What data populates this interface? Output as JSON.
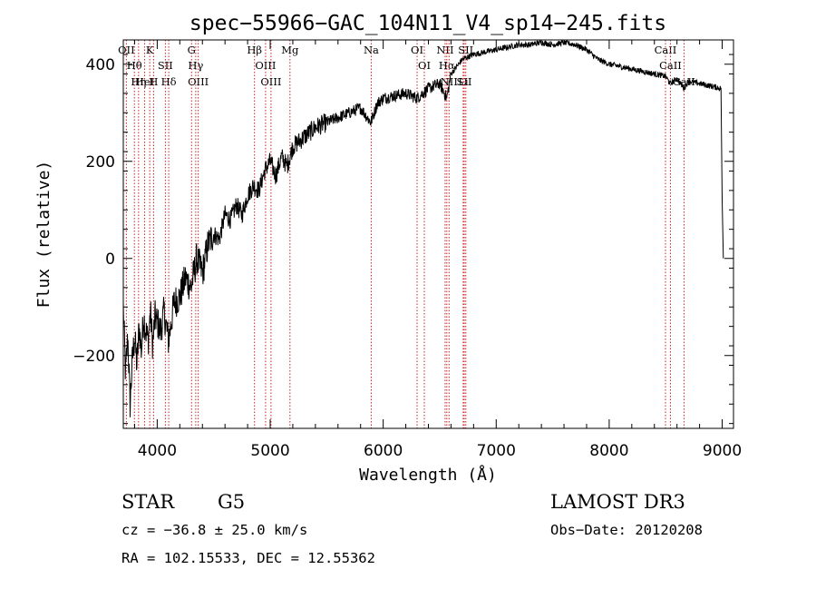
{
  "chart_data": {
    "type": "line",
    "title": "spec−55966−GAC_104N11_V4_sp14−245.fits",
    "xlabel": "Wavelength (Å)",
    "ylabel": "Flux (relative)",
    "xlim": [
      3700,
      9100
    ],
    "ylim": [
      -350,
      450
    ],
    "xticks": [
      4000,
      5000,
      6000,
      7000,
      8000,
      9000
    ],
    "xtick_labels": [
      "4000",
      "5000",
      "6000",
      "7000",
      "8000",
      "9000"
    ],
    "yticks": [
      -200,
      0,
      200,
      400
    ],
    "ytick_labels": [
      "−200",
      "0",
      "200",
      "400"
    ],
    "series": [
      {
        "name": "flux",
        "x": [
          3700,
          3720,
          3740,
          3760,
          3780,
          3800,
          3820,
          3840,
          3860,
          3880,
          3900,
          3920,
          3940,
          3960,
          3980,
          4000,
          4030,
          4060,
          4100,
          4150,
          4200,
          4250,
          4300,
          4350,
          4400,
          4450,
          4500,
          4550,
          4600,
          4650,
          4700,
          4750,
          4800,
          4850,
          4900,
          4950,
          5000,
          5050,
          5100,
          5150,
          5200,
          5300,
          5400,
          5500,
          5600,
          5700,
          5800,
          5890,
          5950,
          6000,
          6100,
          6200,
          6300,
          6400,
          6500,
          6563,
          6600,
          6700,
          6800,
          6900,
          7000,
          7100,
          7200,
          7300,
          7400,
          7500,
          7600,
          7700,
          7800,
          7900,
          8000,
          8100,
          8200,
          8300,
          8400,
          8500,
          8540,
          8600,
          8662,
          8700,
          8800,
          8900,
          8990,
          9000,
          9010
        ],
        "y": [
          -100,
          -240,
          -160,
          -300,
          -210,
          -160,
          -220,
          -140,
          -190,
          -120,
          -150,
          -170,
          -110,
          -180,
          -120,
          -130,
          -150,
          -110,
          -170,
          -90,
          -80,
          -40,
          -60,
          0,
          -30,
          30,
          50,
          40,
          90,
          80,
          110,
          90,
          130,
          150,
          140,
          180,
          200,
          170,
          210,
          190,
          230,
          250,
          270,
          280,
          290,
          300,
          310,
          280,
          320,
          330,
          335,
          340,
          330,
          350,
          360,
          330,
          380,
          410,
          420,
          425,
          430,
          435,
          440,
          440,
          445,
          440,
          445,
          440,
          430,
          410,
          400,
          395,
          390,
          385,
          380,
          375,
          360,
          370,
          350,
          365,
          360,
          355,
          350,
          120,
          0
        ]
      }
    ],
    "emission_lines": [
      {
        "name": "Hθ",
        "wavelength": 3798,
        "row": 0
      },
      {
        "name": "OII",
        "wavelength": 3727,
        "row": 0
      },
      {
        "name": "Hη",
        "wavelength": 3835,
        "row": 0
      },
      {
        "name": "HeI",
        "wavelength": 3889,
        "row": 0
      },
      {
        "name": "K",
        "wavelength": 3934,
        "row": 0
      },
      {
        "name": "H",
        "wavelength": 3968,
        "row": 0
      },
      {
        "name": "SII",
        "wavelength": 4072,
        "row": 0
      },
      {
        "name": "Hδ",
        "wavelength": 4102,
        "row": 0
      },
      {
        "name": "OIII",
        "wavelength": 4363,
        "row": 0
      },
      {
        "name": "Hγ",
        "wavelength": 4341,
        "row": 0
      },
      {
        "name": "G",
        "wavelength": 4304,
        "row": 0
      },
      {
        "name": "OIII",
        "wavelength": 5007,
        "row": 0
      },
      {
        "name": "OIII",
        "wavelength": 4959,
        "row": 0
      },
      {
        "name": "Hβ",
        "wavelength": 4861,
        "row": 0
      },
      {
        "name": "Mg",
        "wavelength": 5175,
        "row": 0
      },
      {
        "name": "Na",
        "wavelength": 5894,
        "row": 0
      },
      {
        "name": "OI",
        "wavelength": 6300,
        "row": 0
      },
      {
        "name": "OI",
        "wavelength": 6364,
        "row": 0
      },
      {
        "name": "Hα",
        "wavelength": 6563,
        "row": 0
      },
      {
        "name": "SII",
        "wavelength": 6717,
        "row": 0
      },
      {
        "name": "NII",
        "wavelength": 6548,
        "row": 0
      },
      {
        "name": "Li",
        "wavelength": 6708,
        "row": 0
      },
      {
        "name": "NII",
        "wavelength": 6583,
        "row": 0
      },
      {
        "name": "SII",
        "wavelength": 6731,
        "row": 0
      },
      {
        "name": "CaII",
        "wavelength": 8542,
        "row": 0
      },
      {
        "name": "CaII",
        "wavelength": 8498,
        "row": 0
      },
      {
        "name": "CaII",
        "wavelength": 8662,
        "row": 0
      }
    ]
  },
  "info": {
    "object_class": "STAR",
    "subclass": "G5",
    "survey": "LAMOST DR3",
    "redshift": "cz = −36.8 ± 25.0 km/s",
    "obs_date": "Obs−Date: 20120208",
    "coords": "RA = 102.15533, DEC =  12.55362"
  },
  "colors": {
    "spectrum": "#000000",
    "line_marker": "#cc2222",
    "axes": "#000000"
  }
}
